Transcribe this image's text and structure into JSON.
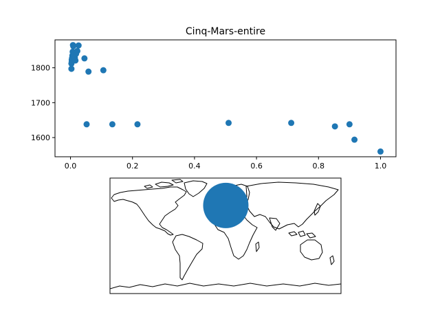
{
  "chart_data": [
    {
      "type": "scatter",
      "title": "Cinq-Mars-entire",
      "xlabel": "",
      "ylabel": "",
      "xlim": [
        -0.05,
        1.05
      ],
      "ylim": [
        1545,
        1880
      ],
      "xticks": [
        "0.0",
        "0.2",
        "0.4",
        "0.6",
        "0.8",
        "1.0"
      ],
      "yticks": [
        "1600",
        "1700",
        "1800"
      ],
      "grid": false,
      "marker_color": "#1f77b4",
      "series": [
        {
          "points": [
            [
              0.003,
              1797
            ],
            [
              0.003,
              1812
            ],
            [
              0.004,
              1818
            ],
            [
              0.004,
              1823
            ],
            [
              0.005,
              1828
            ],
            [
              0.006,
              1835
            ],
            [
              0.007,
              1846
            ],
            [
              0.008,
              1865
            ],
            [
              0.009,
              1862
            ],
            [
              0.012,
              1832
            ],
            [
              0.014,
              1829
            ],
            [
              0.016,
              1821
            ],
            [
              0.018,
              1840
            ],
            [
              0.022,
              1848
            ],
            [
              0.026,
              1864
            ],
            [
              0.045,
              1827
            ],
            [
              0.052,
              1638
            ],
            [
              0.058,
              1789
            ],
            [
              0.106,
              1793
            ],
            [
              0.135,
              1638
            ],
            [
              0.216,
              1638
            ],
            [
              0.51,
              1642
            ],
            [
              0.712,
              1642
            ],
            [
              0.853,
              1632
            ],
            [
              0.9,
              1638
            ],
            [
              0.916,
              1594
            ],
            [
              1.0,
              1560
            ]
          ]
        }
      ]
    },
    {
      "type": "map",
      "projection": "plate-carree",
      "land_outline_color": "#000000",
      "marker": {
        "label": "",
        "lon": 0.5,
        "lat": 47.3,
        "color": "#1f77b4"
      }
    }
  ]
}
